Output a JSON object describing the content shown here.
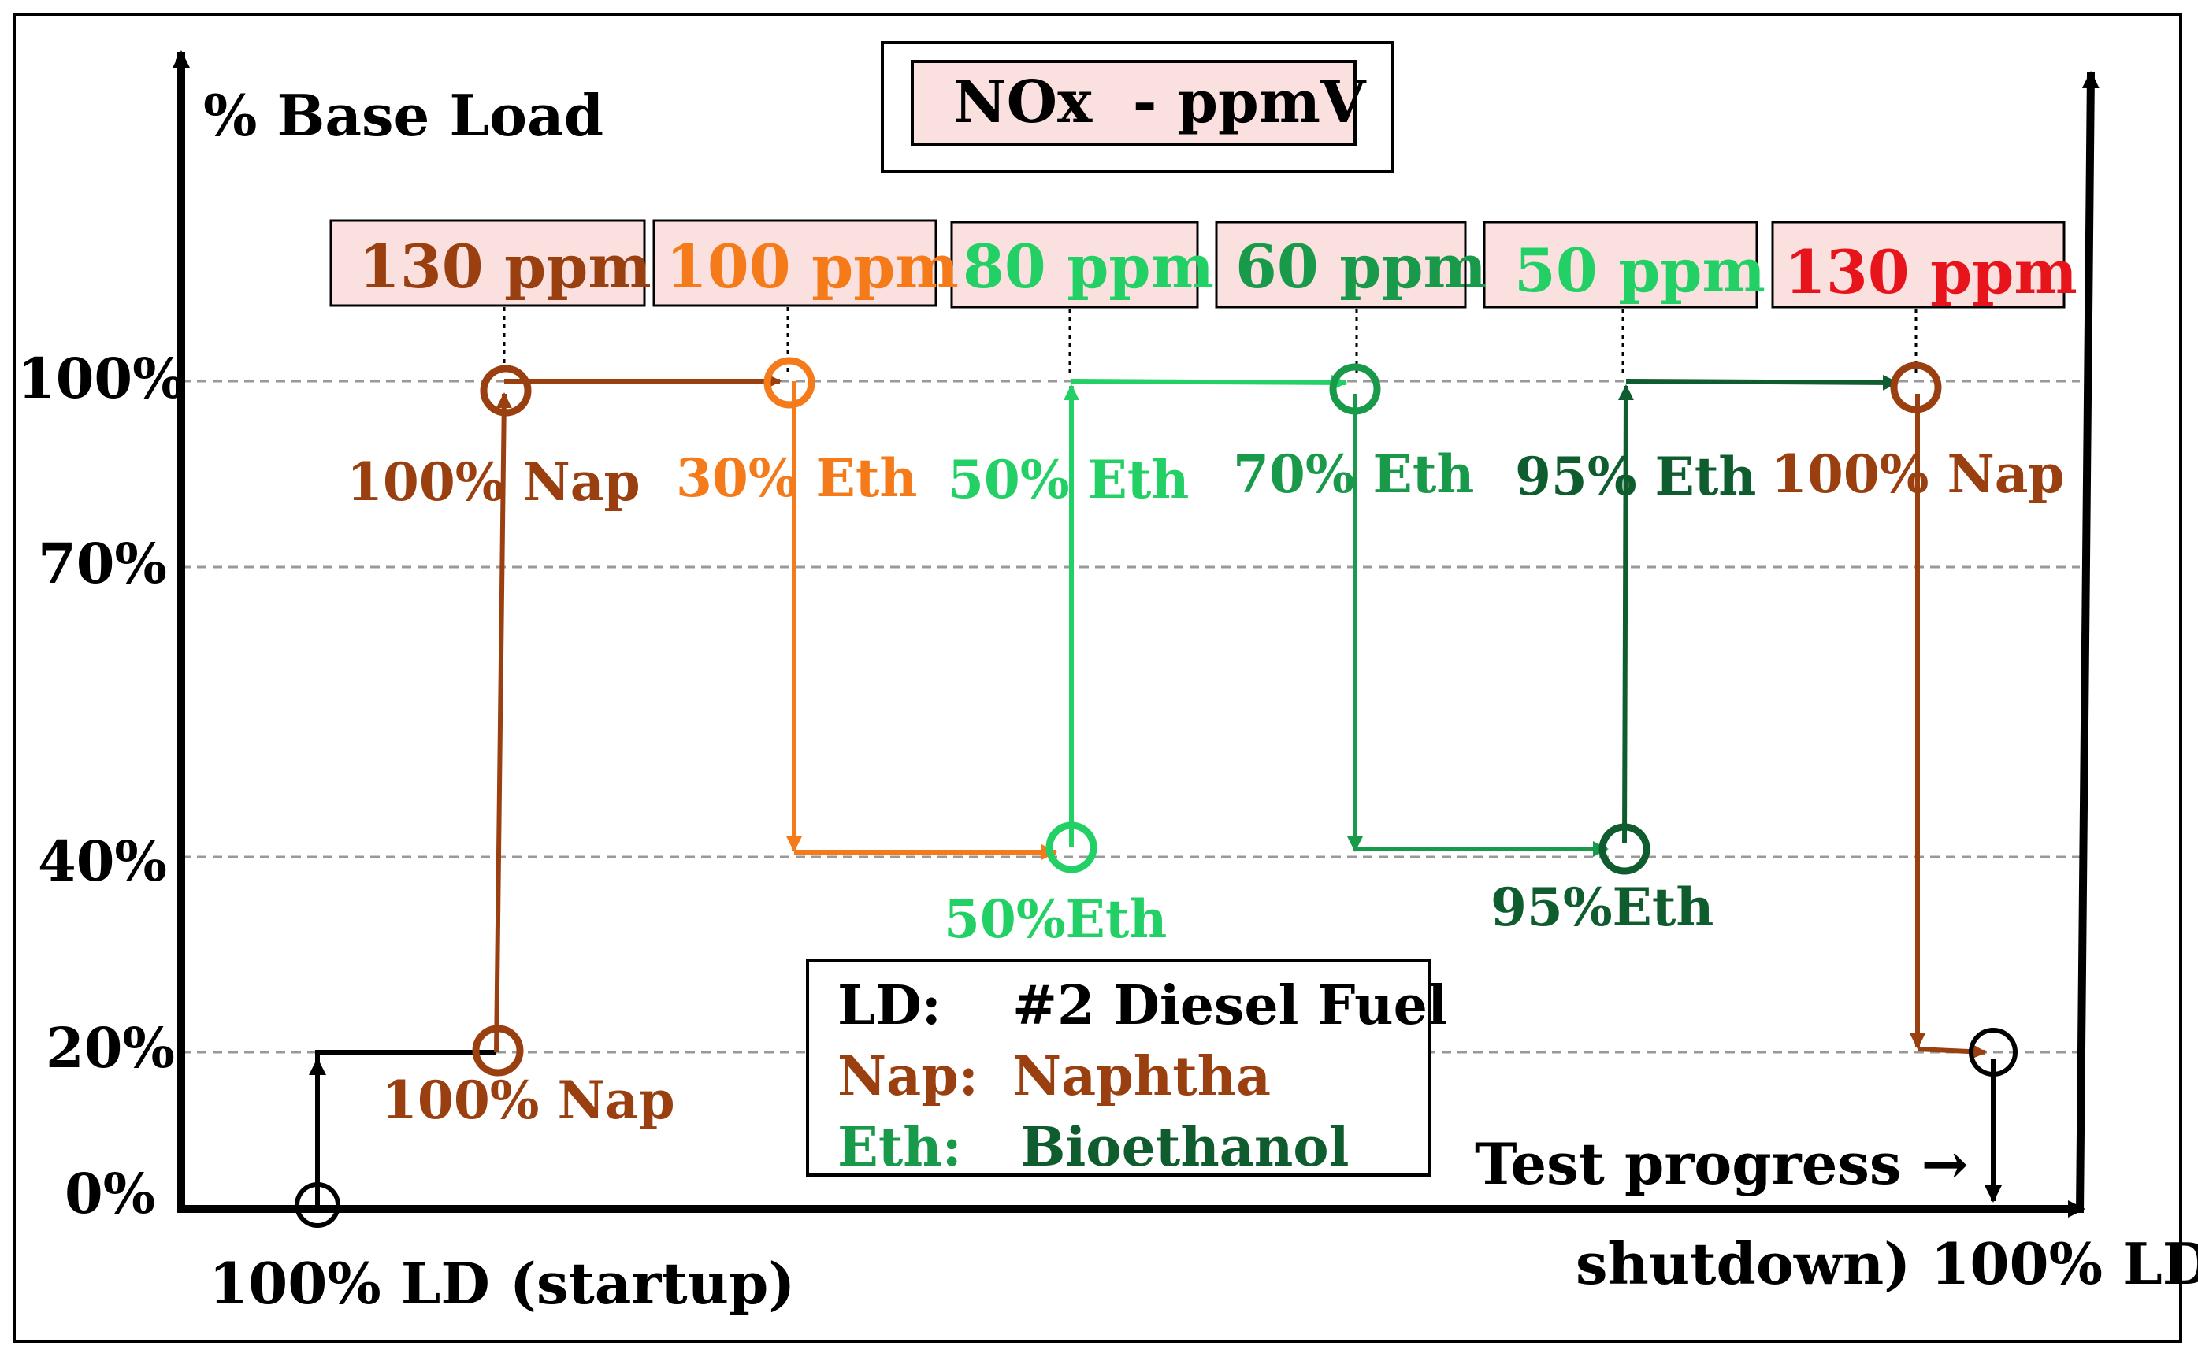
{
  "title": "NOx  - ppmV",
  "axis": {
    "y_label": "% Base Load",
    "x_label": "Test progress →",
    "y_ticks": [
      "0%",
      "20%",
      "40%",
      "70%",
      "100%"
    ],
    "start_label": "100% LD (startup)",
    "end_label": "shutdown) 100% LD"
  },
  "colors": {
    "nap": "#9a3f10",
    "eth30": "#f57a1a",
    "eth50": "#22d065",
    "eth70": "#199a4b",
    "eth95": "#0f5c2e",
    "nap_end_text": "#e8141c",
    "box_fill": "#fbe0e0",
    "black": "#000000"
  },
  "stages": [
    {
      "ppm": "130 ppm",
      "fuel_top": "100% Nap",
      "color": "nap"
    },
    {
      "ppm": "100 ppm",
      "fuel_top": "30% Eth",
      "color": "eth30"
    },
    {
      "ppm": "80 ppm",
      "fuel_top": "50% Eth",
      "color": "eth50"
    },
    {
      "ppm": "60 ppm",
      "fuel_top": "70% Eth",
      "color": "eth70"
    },
    {
      "ppm": "50 ppm",
      "fuel_top": "95% Eth",
      "color": "eth95"
    },
    {
      "ppm": "130 ppm",
      "fuel_top": "100% Nap",
      "color": "nap_end_text"
    }
  ],
  "low_labels": {
    "nap_20": "100% Nap",
    "eth_40_a": "50%Eth",
    "eth_40_b": "95%Eth"
  },
  "legend": [
    {
      "abbr": "LD:",
      "name": "#2 Diesel Fuel"
    },
    {
      "abbr": "Nap:",
      "name": "Naphtha"
    },
    {
      "abbr": "Eth:",
      "name": "Bioethanol"
    }
  ]
}
